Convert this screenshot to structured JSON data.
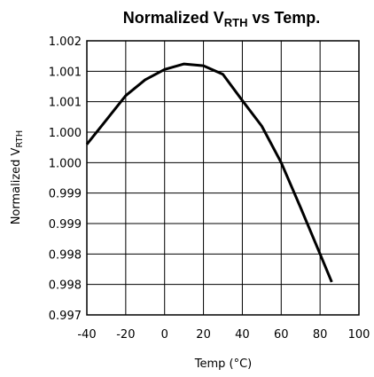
{
  "chart_data": {
    "type": "line",
    "title": "Normalized V",
    "title_subscript": "RTH",
    "title_suffix": " vs Temp.",
    "x_label": "Temp (°C)",
    "y_label": "Normalized V",
    "y_label_subscript": "RTH",
    "x": [
      -40,
      -30,
      -20,
      -10,
      0,
      10,
      20,
      30,
      40,
      50,
      60,
      70,
      80,
      86
    ],
    "series": [
      {
        "name": "Normalized VRTH",
        "color": "#000000",
        "values": [
          1.0003,
          1.0007,
          1.0011,
          1.00136,
          1.00153,
          1.00162,
          1.00159,
          1.00145,
          1.00102,
          1.0006,
          1.0,
          0.99926,
          0.9985,
          0.99804
        ]
      }
    ],
    "xlim": [
      -40,
      100
    ],
    "xticks": [
      -40,
      -20,
      0,
      20,
      40,
      60,
      80,
      100
    ],
    "ylim": [
      0.9975,
      1.002
    ],
    "yticks": [
      {
        "value": 0.9975,
        "label": "0.997"
      },
      0.998,
      {
        "value": 0.9985,
        "label": "0.998"
      },
      0.999,
      {
        "value": 0.9995,
        "label": "0.999"
      },
      {
        "value": 1.0,
        "label": "1.000"
      },
      {
        "value": 1.0005,
        "label": "1.000"
      },
      1.001,
      {
        "value": 1.0015,
        "label": "1.001"
      },
      1.002
    ],
    "grid": true
  }
}
